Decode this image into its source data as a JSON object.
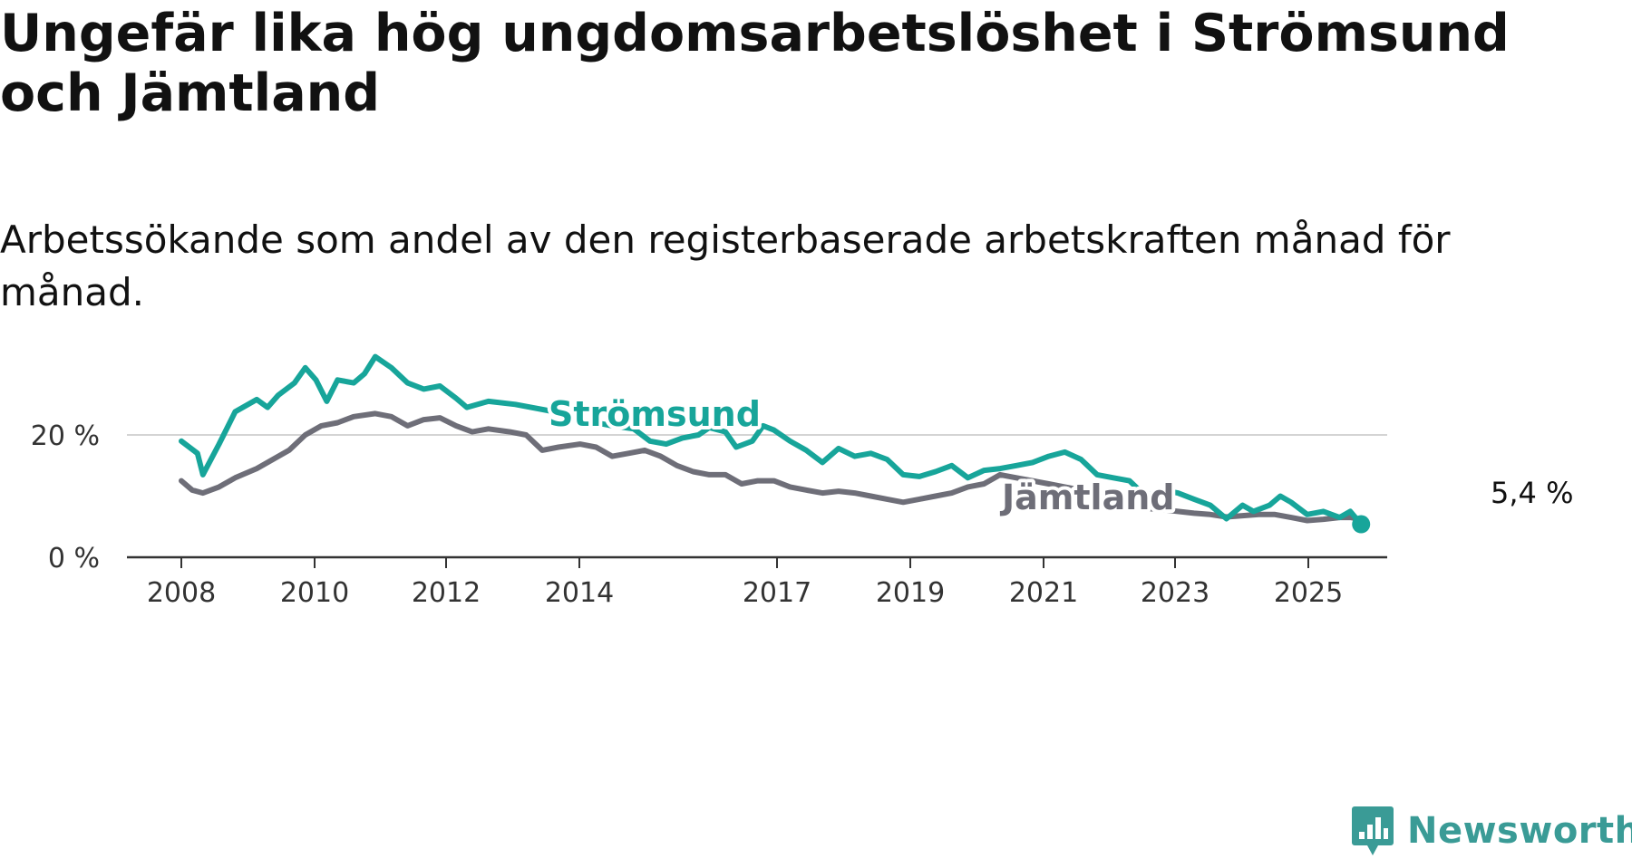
{
  "title": "Ungefär lika hög ungdomsarbetslöshet i Strömsund och Jämtland",
  "subtitle": "Arbetssökande som andel av den registerbaserade arbetskraften månad för månad.",
  "brand": {
    "name": "Newsworthy",
    "icon": "newsworthy-logo-icon",
    "color": "#3a9b96"
  },
  "chart_data": {
    "type": "line",
    "title": "Ungefär lika hög ungdomsarbetslöshet i Strömsund och Jämtland",
    "subtitle": "Arbetssökande som andel av den registerbaserade arbetskraften månad för månad.",
    "xlabel": "",
    "ylabel": "",
    "x_ticks": [
      "2008",
      "2010",
      "2012",
      "2014",
      "2017",
      "2019",
      "2021",
      "2023",
      "2025"
    ],
    "y_ticks": [
      "0 %",
      "20 %"
    ],
    "ylim": [
      0,
      35
    ],
    "grid": true,
    "last_value_label": "5,4 %",
    "series": [
      {
        "name": "Strömsund",
        "color": "#17a59a",
        "points": [
          [
            "2008-01",
            19.0
          ],
          [
            "2008-04",
            17.0
          ],
          [
            "2008-05",
            13.5
          ],
          [
            "2008-08",
            18.5
          ],
          [
            "2008-11",
            23.8
          ],
          [
            "2009-03",
            25.8
          ],
          [
            "2009-05",
            24.5
          ],
          [
            "2009-07",
            26.5
          ],
          [
            "2009-10",
            28.5
          ],
          [
            "2009-12",
            31.0
          ],
          [
            "2010-02",
            29.0
          ],
          [
            "2010-04",
            25.5
          ],
          [
            "2010-06",
            29.0
          ],
          [
            "2010-09",
            28.5
          ],
          [
            "2010-11",
            30.0
          ],
          [
            "2011-01",
            32.8
          ],
          [
            "2011-04",
            31.0
          ],
          [
            "2011-07",
            28.5
          ],
          [
            "2011-10",
            27.5
          ],
          [
            "2012-01",
            28.0
          ],
          [
            "2012-04",
            26.0
          ],
          [
            "2012-06",
            24.5
          ],
          [
            "2012-10",
            25.5
          ],
          [
            "2013-03",
            25.0
          ],
          [
            "2013-09",
            24.0
          ],
          [
            "2014-03",
            22.5
          ],
          [
            "2014-09",
            21.5
          ],
          [
            "2015-01",
            21.0
          ],
          [
            "2015-04",
            19.0
          ],
          [
            "2015-07",
            18.5
          ],
          [
            "2015-10",
            19.5
          ],
          [
            "2016-01",
            20.0
          ],
          [
            "2016-03",
            21.2
          ],
          [
            "2016-06",
            20.5
          ],
          [
            "2016-08",
            18.0
          ],
          [
            "2016-11",
            19.0
          ],
          [
            "2017-01",
            21.5
          ],
          [
            "2017-03",
            20.8
          ],
          [
            "2017-06",
            19.0
          ],
          [
            "2017-09",
            17.5
          ],
          [
            "2017-12",
            15.5
          ],
          [
            "2018-03",
            17.8
          ],
          [
            "2018-06",
            16.5
          ],
          [
            "2018-09",
            17.0
          ],
          [
            "2018-12",
            16.0
          ],
          [
            "2019-03",
            13.5
          ],
          [
            "2019-06",
            13.2
          ],
          [
            "2019-09",
            14.0
          ],
          [
            "2019-12",
            15.0
          ],
          [
            "2020-03",
            13.0
          ],
          [
            "2020-06",
            14.2
          ],
          [
            "2020-09",
            14.5
          ],
          [
            "2020-12",
            15.0
          ],
          [
            "2021-03",
            15.5
          ],
          [
            "2021-06",
            16.5
          ],
          [
            "2021-09",
            17.2
          ],
          [
            "2021-12",
            16.0
          ],
          [
            "2022-03",
            13.5
          ],
          [
            "2022-06",
            13.0
          ],
          [
            "2022-09",
            12.5
          ],
          [
            "2022-12",
            10.0
          ],
          [
            "2023-03",
            11.0
          ],
          [
            "2023-06",
            10.5
          ],
          [
            "2023-09",
            9.5
          ],
          [
            "2023-12",
            8.5
          ],
          [
            "2024-03",
            6.3
          ],
          [
            "2024-06",
            8.5
          ],
          [
            "2024-08",
            7.5
          ],
          [
            "2024-11",
            8.5
          ],
          [
            "2025-01",
            10.0
          ],
          [
            "2025-03",
            9.0
          ],
          [
            "2025-06",
            7.0
          ],
          [
            "2025-09",
            7.5
          ],
          [
            "2025-12",
            6.5
          ],
          [
            "2026-02",
            7.5
          ],
          [
            "2026-04",
            5.4
          ]
        ]
      },
      {
        "name": "Jämtland",
        "color": "#6e6e78",
        "points": [
          [
            "2008-01",
            12.5
          ],
          [
            "2008-03",
            11.0
          ],
          [
            "2008-05",
            10.5
          ],
          [
            "2008-08",
            11.5
          ],
          [
            "2008-11",
            13.0
          ],
          [
            "2009-03",
            14.5
          ],
          [
            "2009-06",
            16.0
          ],
          [
            "2009-09",
            17.5
          ],
          [
            "2009-12",
            20.0
          ],
          [
            "2010-03",
            21.5
          ],
          [
            "2010-06",
            22.0
          ],
          [
            "2010-09",
            23.0
          ],
          [
            "2011-01",
            23.5
          ],
          [
            "2011-04",
            23.0
          ],
          [
            "2011-07",
            21.5
          ],
          [
            "2011-10",
            22.5
          ],
          [
            "2012-01",
            22.8
          ],
          [
            "2012-04",
            21.5
          ],
          [
            "2012-07",
            20.5
          ],
          [
            "2012-10",
            21.0
          ],
          [
            "2013-02",
            20.5
          ],
          [
            "2013-05",
            20.0
          ],
          [
            "2013-08",
            17.5
          ],
          [
            "2013-11",
            18.0
          ],
          [
            "2014-03",
            18.5
          ],
          [
            "2014-06",
            18.0
          ],
          [
            "2014-09",
            16.5
          ],
          [
            "2014-12",
            17.0
          ],
          [
            "2015-03",
            17.5
          ],
          [
            "2015-06",
            16.5
          ],
          [
            "2015-09",
            15.0
          ],
          [
            "2015-12",
            14.0
          ],
          [
            "2016-03",
            13.5
          ],
          [
            "2016-06",
            13.5
          ],
          [
            "2016-09",
            12.0
          ],
          [
            "2016-12",
            12.5
          ],
          [
            "2017-03",
            12.5
          ],
          [
            "2017-06",
            11.5
          ],
          [
            "2017-09",
            11.0
          ],
          [
            "2017-12",
            10.5
          ],
          [
            "2018-03",
            10.8
          ],
          [
            "2018-06",
            10.5
          ],
          [
            "2018-09",
            10.0
          ],
          [
            "2018-12",
            9.5
          ],
          [
            "2019-03",
            9.0
          ],
          [
            "2019-06",
            9.5
          ],
          [
            "2019-09",
            10.0
          ],
          [
            "2019-12",
            10.5
          ],
          [
            "2020-03",
            11.5
          ],
          [
            "2020-06",
            12.0
          ],
          [
            "2020-09",
            13.5
          ],
          [
            "2020-12",
            13.0
          ],
          [
            "2021-03",
            12.5
          ],
          [
            "2021-06",
            12.0
          ],
          [
            "2021-09",
            11.5
          ],
          [
            "2021-12",
            11.0
          ],
          [
            "2022-03",
            10.5
          ],
          [
            "2022-06",
            9.0
          ],
          [
            "2022-09",
            8.5
          ],
          [
            "2022-12",
            8.0
          ],
          [
            "2023-03",
            7.8
          ],
          [
            "2023-06",
            7.5
          ],
          [
            "2023-09",
            7.2
          ],
          [
            "2023-12",
            7.0
          ],
          [
            "2024-03",
            6.6
          ],
          [
            "2024-06",
            6.8
          ],
          [
            "2024-09",
            7.0
          ],
          [
            "2024-12",
            7.0
          ],
          [
            "2025-03",
            6.5
          ],
          [
            "2025-06",
            6.0
          ],
          [
            "2025-09",
            6.2
          ],
          [
            "2025-12",
            6.5
          ],
          [
            "2026-02",
            6.5
          ],
          [
            "2026-04",
            6.2
          ]
        ]
      }
    ]
  }
}
